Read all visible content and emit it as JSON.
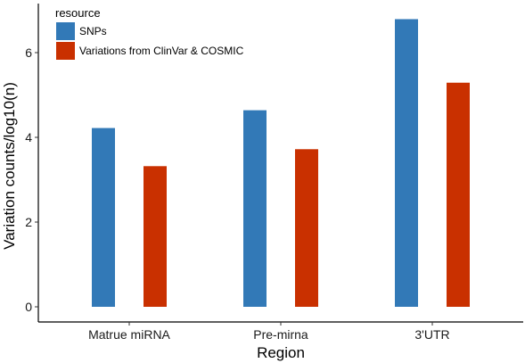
{
  "chart_data": {
    "type": "bar",
    "title": "",
    "xlabel": "Region",
    "ylabel": "Variation counts/log10(n)",
    "categories": [
      "Matrue miRNA",
      "Pre-mirna",
      "3'UTR"
    ],
    "series": [
      {
        "name": "SNPs",
        "values": [
          4.22,
          4.64,
          6.79
        ],
        "color": "#3279b7"
      },
      {
        "name": "Variations from ClinVar & COSMIC",
        "values": [
          3.32,
          3.72,
          5.29
        ],
        "color": "#c93000"
      }
    ],
    "ylim": [
      0,
      7.1
    ],
    "yticks": [
      0,
      2,
      4,
      6
    ],
    "ytick_labels": [
      "0",
      "2",
      "4",
      "6"
    ],
    "grid": false,
    "legend": {
      "title": "resource",
      "position": "top-left"
    }
  }
}
